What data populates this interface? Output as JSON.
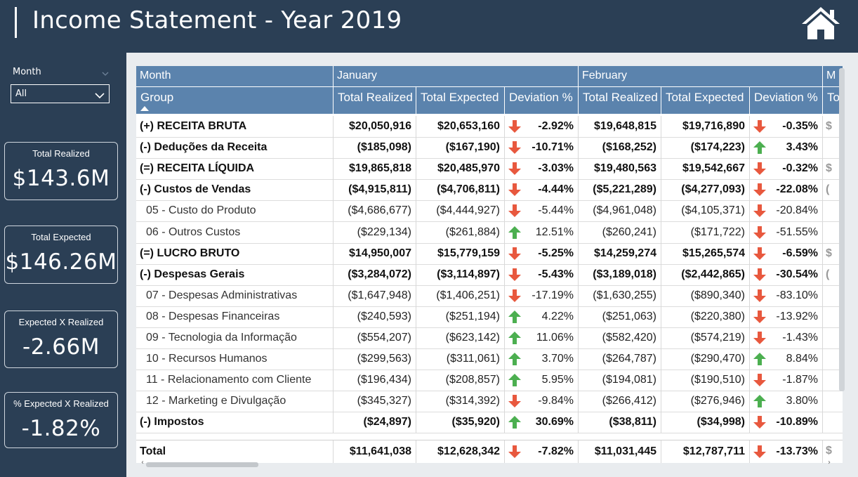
{
  "header": {
    "title": "Income Statement - Year 2019",
    "home_icon": "home-icon"
  },
  "slicer": {
    "label": "Month",
    "value": "All"
  },
  "cards": [
    {
      "label": "Total Realized",
      "value": "$143.6M"
    },
    {
      "label": "Total Expected",
      "value": "$146.26M"
    },
    {
      "label": "Expected X Realized",
      "value": "-2.66M"
    },
    {
      "label": "% Expected X Realized",
      "value": "-1.82%"
    }
  ],
  "table": {
    "header_row1": {
      "month_label": "Month",
      "months": [
        "January",
        "February",
        "M"
      ]
    },
    "header_row2": {
      "group_label": "Group",
      "columns": [
        "Total Realized",
        "Total Expected",
        "Deviation %",
        "Total Realized",
        "Total Expected",
        "Deviation %",
        "To"
      ]
    },
    "colors": {
      "header_bg": "#5b83ad",
      "arrow_up": "#4caf50",
      "arrow_down": "#e8583e"
    },
    "rows": [
      {
        "group": "(+) RECEITA BRUTA",
        "bold": true,
        "jan": [
          "$20,050,916",
          "$20,653,160",
          "-2.92%"
        ],
        "jan_dir": "down",
        "feb": [
          "$19,648,815",
          "$19,716,890",
          "-0.35%"
        ],
        "feb_dir": "down",
        "next": "$"
      },
      {
        "group": "(-) Deduções da Receita",
        "bold": true,
        "jan": [
          "($185,098)",
          "($167,190)",
          "-10.71%"
        ],
        "jan_dir": "down",
        "feb": [
          "($168,252)",
          "($174,223)",
          "3.43%"
        ],
        "feb_dir": "up",
        "next": ""
      },
      {
        "group": "(=) RECEITA LÍQUIDA",
        "bold": true,
        "jan": [
          "$19,865,818",
          "$20,485,970",
          "-3.03%"
        ],
        "jan_dir": "down",
        "feb": [
          "$19,480,563",
          "$19,542,667",
          "-0.32%"
        ],
        "feb_dir": "down",
        "next": "$"
      },
      {
        "group": "(-) Custos de Vendas",
        "bold": true,
        "jan": [
          "($4,915,811)",
          "($4,706,811)",
          "-4.44%"
        ],
        "jan_dir": "down",
        "feb": [
          "($5,221,289)",
          "($4,277,093)",
          "-22.08%"
        ],
        "feb_dir": "down",
        "next": "("
      },
      {
        "group": "05 - Custo do Produto",
        "bold": false,
        "jan": [
          "($4,686,677)",
          "($4,444,927)",
          "-5.44%"
        ],
        "jan_dir": "down",
        "feb": [
          "($4,961,048)",
          "($4,105,371)",
          "-20.84%"
        ],
        "feb_dir": "down",
        "next": ""
      },
      {
        "group": "06 - Outros Custos",
        "bold": false,
        "jan": [
          "($229,134)",
          "($261,884)",
          "12.51%"
        ],
        "jan_dir": "up",
        "feb": [
          "($260,241)",
          "($171,722)",
          "-51.55%"
        ],
        "feb_dir": "down",
        "next": ""
      },
      {
        "group": "(=) LUCRO BRUTO",
        "bold": true,
        "jan": [
          "$14,950,007",
          "$15,779,159",
          "-5.25%"
        ],
        "jan_dir": "down",
        "feb": [
          "$14,259,274",
          "$15,265,574",
          "-6.59%"
        ],
        "feb_dir": "down",
        "next": "$"
      },
      {
        "group": "(-) Despesas Gerais",
        "bold": true,
        "jan": [
          "($3,284,072)",
          "($3,114,897)",
          "-5.43%"
        ],
        "jan_dir": "down",
        "feb": [
          "($3,189,018)",
          "($2,442,865)",
          "-30.54%"
        ],
        "feb_dir": "down",
        "next": "("
      },
      {
        "group": "07 - Despesas Administrativas",
        "bold": false,
        "jan": [
          "($1,647,948)",
          "($1,406,251)",
          "-17.19%"
        ],
        "jan_dir": "down",
        "feb": [
          "($1,630,255)",
          "($890,340)",
          "-83.10%"
        ],
        "feb_dir": "down",
        "next": ""
      },
      {
        "group": "08 - Despesas Financeiras",
        "bold": false,
        "jan": [
          "($240,593)",
          "($251,194)",
          "4.22%"
        ],
        "jan_dir": "up",
        "feb": [
          "($251,063)",
          "($220,380)",
          "-13.92%"
        ],
        "feb_dir": "down",
        "next": ""
      },
      {
        "group": "09 - Tecnologia da Informação",
        "bold": false,
        "jan": [
          "($554,207)",
          "($623,142)",
          "11.06%"
        ],
        "jan_dir": "up",
        "feb": [
          "($582,420)",
          "($574,219)",
          "-1.43%"
        ],
        "feb_dir": "down",
        "next": ""
      },
      {
        "group": "10 - Recursos Humanos",
        "bold": false,
        "jan": [
          "($299,563)",
          "($311,061)",
          "3.70%"
        ],
        "jan_dir": "up",
        "feb": [
          "($264,787)",
          "($290,470)",
          "8.84%"
        ],
        "feb_dir": "up",
        "next": ""
      },
      {
        "group": "11 - Relacionamento com Cliente",
        "bold": false,
        "jan": [
          "($196,434)",
          "($208,857)",
          "5.95%"
        ],
        "jan_dir": "up",
        "feb": [
          "($194,081)",
          "($190,510)",
          "-1.87%"
        ],
        "feb_dir": "down",
        "next": ""
      },
      {
        "group": "12 - Marketing e Divulgação",
        "bold": false,
        "jan": [
          "($345,327)",
          "($314,392)",
          "-9.84%"
        ],
        "jan_dir": "down",
        "feb": [
          "($266,412)",
          "($276,946)",
          "3.80%"
        ],
        "feb_dir": "up",
        "next": ""
      },
      {
        "group": "(-) Impostos",
        "bold": true,
        "jan": [
          "($24,897)",
          "($35,920)",
          "30.69%"
        ],
        "jan_dir": "up",
        "feb": [
          "($38,811)",
          "($34,998)",
          "-10.89%"
        ],
        "feb_dir": "down",
        "next": ""
      }
    ],
    "total": {
      "group": "Total",
      "jan": [
        "$11,641,038",
        "$12,628,342",
        "-7.82%"
      ],
      "jan_dir": "down",
      "feb": [
        "$11,031,445",
        "$12,787,711",
        "-13.73%"
      ],
      "feb_dir": "down",
      "next": "$"
    }
  }
}
